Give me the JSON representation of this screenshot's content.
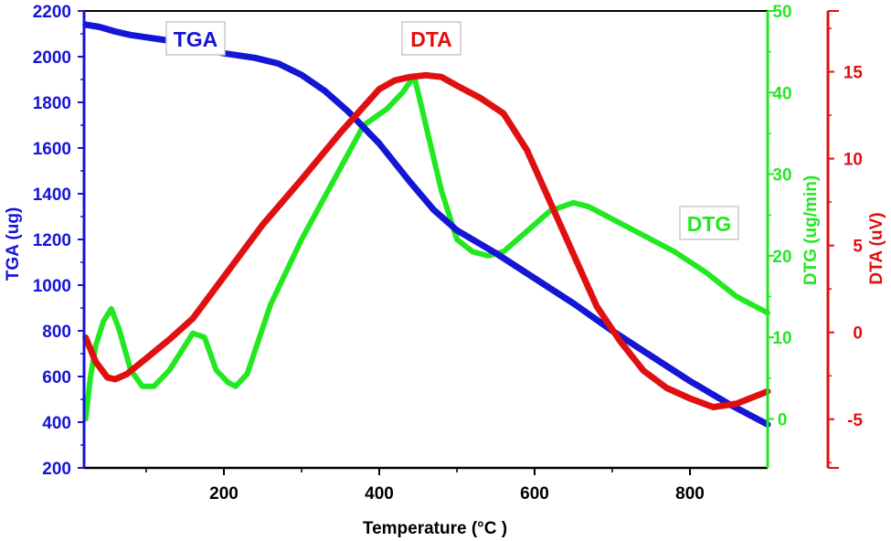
{
  "chart_data": {
    "type": "line",
    "xlabel": "Temperature (°C )",
    "xlim": [
      20,
      900
    ],
    "x_ticks": [
      200,
      400,
      600,
      800
    ],
    "grid": false,
    "axes": {
      "tga": {
        "label": "TGA (ug)",
        "ylim": [
          200,
          2200
        ],
        "ticks": [
          200,
          400,
          600,
          800,
          1000,
          1200,
          1400,
          1600,
          1800,
          2000,
          2200
        ],
        "color": "#1515d6"
      },
      "dtg": {
        "label": "DTG (ug/min)",
        "ylim": [
          -6,
          50
        ],
        "ticks": [
          0,
          10,
          20,
          30,
          40,
          50
        ],
        "color": "#22e822"
      },
      "dta": {
        "label": "DTA (uV)",
        "ylim": [
          -7.8,
          18.5
        ],
        "ticks": [
          -5,
          0,
          5,
          10,
          15
        ],
        "color": "#e01010"
      }
    },
    "annotations": [
      {
        "text": "TGA",
        "color": "#1515d6"
      },
      {
        "text": "DTA",
        "color": "#e01010"
      },
      {
        "text": "DTG",
        "color": "#22e822"
      }
    ],
    "series": [
      {
        "name": "TGA",
        "axis": "tga",
        "color": "#1515d6",
        "x": [
          22,
          40,
          60,
          80,
          100,
          130,
          160,
          200,
          240,
          270,
          300,
          330,
          360,
          400,
          440,
          470,
          500,
          550,
          600,
          650,
          700,
          750,
          800,
          850,
          900
        ],
        "y": [
          2140,
          2130,
          2110,
          2095,
          2085,
          2070,
          2045,
          2015,
          1995,
          1970,
          1920,
          1850,
          1760,
          1620,
          1450,
          1330,
          1240,
          1140,
          1030,
          920,
          800,
          690,
          580,
          480,
          390
        ]
      },
      {
        "name": "DTA",
        "axis": "dta",
        "color": "#e01010",
        "x": [
          22,
          35,
          50,
          60,
          75,
          100,
          130,
          160,
          200,
          250,
          300,
          350,
          380,
          400,
          420,
          440,
          460,
          480,
          500,
          530,
          560,
          590,
          620,
          650,
          680,
          710,
          740,
          770,
          800,
          830,
          860,
          900
        ],
        "y": [
          -0.3,
          -1.7,
          -2.6,
          -2.7,
          -2.4,
          -1.5,
          -0.4,
          0.8,
          3.2,
          6.2,
          8.8,
          11.5,
          13.0,
          14.0,
          14.5,
          14.7,
          14.8,
          14.7,
          14.2,
          13.5,
          12.6,
          10.5,
          7.5,
          4.5,
          1.5,
          -0.5,
          -2.2,
          -3.2,
          -3.8,
          -4.3,
          -4.1,
          -3.4
        ]
      },
      {
        "name": "DTG",
        "axis": "dtg",
        "color": "#22e822",
        "x": [
          22,
          28,
          35,
          45,
          55,
          65,
          80,
          95,
          110,
          130,
          150,
          160,
          175,
          190,
          205,
          215,
          230,
          260,
          300,
          340,
          380,
          410,
          430,
          445,
          460,
          480,
          500,
          520,
          540,
          560,
          590,
          620,
          650,
          670,
          700,
          740,
          780,
          820,
          860,
          900
        ],
        "y": [
          0,
          5,
          9,
          12,
          13.5,
          11,
          6,
          4,
          4,
          6,
          9,
          10.5,
          10,
          6,
          4.5,
          4,
          5.5,
          14,
          22,
          29,
          36,
          38,
          40,
          42,
          36,
          28,
          22,
          20.5,
          20,
          20.5,
          23,
          25.5,
          26.5,
          26,
          24.5,
          22.5,
          20.5,
          18,
          15,
          13
        ]
      }
    ]
  }
}
